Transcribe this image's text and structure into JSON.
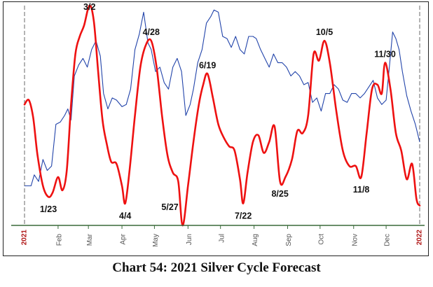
{
  "caption": "Chart 54: 2021 Silver Cycle Forecast",
  "colors": {
    "cycle": "#ee1111",
    "price": "#2244aa",
    "axis": "#3a6a3a",
    "year_label": "#b01818",
    "month_label": "#555555",
    "annotation": "#111111"
  },
  "chart_data": {
    "type": "line",
    "title": "Chart 54: 2021 Silver Cycle Forecast",
    "xlabel": "",
    "ylabel": "",
    "x_range": [
      "2021-01-01",
      "2022-01-01"
    ],
    "y_range": [
      0,
      100
    ],
    "y_scale_note": "unitless (no y-axis ticks shown)",
    "grid": false,
    "legend": "none",
    "year_labels": [
      {
        "date": "2021-01-01",
        "label": "2021"
      },
      {
        "date": "2022-01-01",
        "label": "2022"
      }
    ],
    "month_ticks": [
      {
        "date": "2021-02-01",
        "label": "Feb"
      },
      {
        "date": "2021-03-01",
        "label": "Mar"
      },
      {
        "date": "2021-04-01",
        "label": "Apr"
      },
      {
        "date": "2021-05-01",
        "label": "May"
      },
      {
        "date": "2021-06-01",
        "label": "Jun"
      },
      {
        "date": "2021-07-01",
        "label": "Jul"
      },
      {
        "date": "2021-08-01",
        "label": "Aug"
      },
      {
        "date": "2021-09-01",
        "label": "Sep"
      },
      {
        "date": "2021-10-01",
        "label": "Oct"
      },
      {
        "date": "2021-11-01",
        "label": "Nov"
      },
      {
        "date": "2021-12-01",
        "label": "Dec"
      }
    ],
    "annotations": [
      {
        "text": "3/2",
        "date": "2021-03-02",
        "y": 100,
        "pos": "above"
      },
      {
        "text": "4/28",
        "date": "2021-04-28",
        "y": 84,
        "pos": "above"
      },
      {
        "text": "6/19",
        "date": "2021-06-19",
        "y": 69,
        "pos": "above"
      },
      {
        "text": "10/5",
        "date": "2021-10-05",
        "y": 84,
        "pos": "above"
      },
      {
        "text": "11/30",
        "date": "2021-11-30",
        "y": 74,
        "pos": "above"
      },
      {
        "text": "1/23",
        "date": "2021-01-23",
        "y": 13,
        "pos": "below"
      },
      {
        "text": "4/4",
        "date": "2021-04-04",
        "y": 10,
        "pos": "below"
      },
      {
        "text": "5/27",
        "date": "2021-05-27",
        "y": 0,
        "pos": "left-below"
      },
      {
        "text": "7/22",
        "date": "2021-07-22",
        "y": 10,
        "pos": "below"
      },
      {
        "text": "8/25",
        "date": "2021-08-25",
        "y": 20,
        "pos": "below"
      },
      {
        "text": "11/8",
        "date": "2021-11-08",
        "y": 22,
        "pos": "below"
      }
    ],
    "series": [
      {
        "role": "cycle",
        "points": [
          [
            "2021-01-01",
            55
          ],
          [
            "2021-01-05",
            57
          ],
          [
            "2021-01-09",
            49
          ],
          [
            "2021-01-13",
            32
          ],
          [
            "2021-01-18",
            18
          ],
          [
            "2021-01-23",
            13
          ],
          [
            "2021-01-27",
            15
          ],
          [
            "2021-02-01",
            22
          ],
          [
            "2021-02-05",
            16
          ],
          [
            "2021-02-09",
            25
          ],
          [
            "2021-02-13",
            55
          ],
          [
            "2021-02-17",
            78
          ],
          [
            "2021-02-21",
            86
          ],
          [
            "2021-02-25",
            91
          ],
          [
            "2021-03-02",
            100
          ],
          [
            "2021-03-06",
            93
          ],
          [
            "2021-03-10",
            70
          ],
          [
            "2021-03-14",
            48
          ],
          [
            "2021-03-18",
            37
          ],
          [
            "2021-03-22",
            29
          ],
          [
            "2021-03-27",
            28
          ],
          [
            "2021-04-01",
            18
          ],
          [
            "2021-04-04",
            10
          ],
          [
            "2021-04-08",
            25
          ],
          [
            "2021-04-13",
            50
          ],
          [
            "2021-04-18",
            72
          ],
          [
            "2021-04-23",
            82
          ],
          [
            "2021-04-28",
            84
          ],
          [
            "2021-05-03",
            72
          ],
          [
            "2021-05-08",
            50
          ],
          [
            "2021-05-13",
            32
          ],
          [
            "2021-05-18",
            24
          ],
          [
            "2021-05-23",
            20
          ],
          [
            "2021-05-27",
            0
          ],
          [
            "2021-06-01",
            18
          ],
          [
            "2021-06-06",
            38
          ],
          [
            "2021-06-11",
            55
          ],
          [
            "2021-06-15",
            64
          ],
          [
            "2021-06-19",
            69
          ],
          [
            "2021-06-24",
            58
          ],
          [
            "2021-06-29",
            46
          ],
          [
            "2021-07-04",
            40
          ],
          [
            "2021-07-09",
            36
          ],
          [
            "2021-07-14",
            34
          ],
          [
            "2021-07-19",
            21
          ],
          [
            "2021-07-22",
            10
          ],
          [
            "2021-07-26",
            24
          ],
          [
            "2021-07-31",
            38
          ],
          [
            "2021-08-05",
            41
          ],
          [
            "2021-08-10",
            33
          ],
          [
            "2021-08-15",
            38
          ],
          [
            "2021-08-20",
            45
          ],
          [
            "2021-08-25",
            20
          ],
          [
            "2021-08-30",
            22
          ],
          [
            "2021-09-05",
            30
          ],
          [
            "2021-09-10",
            43
          ],
          [
            "2021-09-15",
            42
          ],
          [
            "2021-09-20",
            50
          ],
          [
            "2021-09-25",
            78
          ],
          [
            "2021-09-30",
            75
          ],
          [
            "2021-10-05",
            84
          ],
          [
            "2021-10-10",
            74
          ],
          [
            "2021-10-16",
            52
          ],
          [
            "2021-10-22",
            34
          ],
          [
            "2021-10-28",
            27
          ],
          [
            "2021-11-03",
            27
          ],
          [
            "2021-11-08",
            22
          ],
          [
            "2021-11-13",
            42
          ],
          [
            "2021-11-18",
            62
          ],
          [
            "2021-11-23",
            64
          ],
          [
            "2021-11-27",
            60
          ],
          [
            "2021-11-30",
            74
          ],
          [
            "2021-12-05",
            62
          ],
          [
            "2021-12-10",
            42
          ],
          [
            "2021-12-15",
            34
          ],
          [
            "2021-12-20",
            21
          ],
          [
            "2021-12-25",
            28
          ],
          [
            "2021-12-29",
            12
          ],
          [
            "2022-01-01",
            9
          ]
        ]
      },
      {
        "role": "price",
        "points": [
          [
            "2021-01-01",
            18
          ],
          [
            "2021-01-04",
            18
          ],
          [
            "2021-01-07",
            18
          ],
          [
            "2021-01-10",
            23
          ],
          [
            "2021-01-14",
            20
          ],
          [
            "2021-01-18",
            30
          ],
          [
            "2021-01-22",
            25
          ],
          [
            "2021-01-26",
            27
          ],
          [
            "2021-01-30",
            46
          ],
          [
            "2021-02-03",
            47
          ],
          [
            "2021-02-07",
            50
          ],
          [
            "2021-02-10",
            53
          ],
          [
            "2021-02-13",
            48
          ],
          [
            "2021-02-16",
            68
          ],
          [
            "2021-02-20",
            73
          ],
          [
            "2021-02-24",
            76
          ],
          [
            "2021-02-28",
            72
          ],
          [
            "2021-03-04",
            80
          ],
          [
            "2021-03-08",
            84
          ],
          [
            "2021-03-12",
            77
          ],
          [
            "2021-03-15",
            60
          ],
          [
            "2021-03-19",
            53
          ],
          [
            "2021-03-23",
            58
          ],
          [
            "2021-03-27",
            57
          ],
          [
            "2021-04-01",
            54
          ],
          [
            "2021-04-05",
            55
          ],
          [
            "2021-04-09",
            62
          ],
          [
            "2021-04-13",
            80
          ],
          [
            "2021-04-17",
            87
          ],
          [
            "2021-04-21",
            97
          ],
          [
            "2021-04-25",
            83
          ],
          [
            "2021-04-28",
            80
          ],
          [
            "2021-05-02",
            70
          ],
          [
            "2021-05-06",
            72
          ],
          [
            "2021-05-10",
            65
          ],
          [
            "2021-05-14",
            62
          ],
          [
            "2021-05-18",
            72
          ],
          [
            "2021-05-22",
            76
          ],
          [
            "2021-05-26",
            70
          ],
          [
            "2021-05-30",
            50
          ],
          [
            "2021-06-03",
            55
          ],
          [
            "2021-06-06",
            62
          ],
          [
            "2021-06-10",
            74
          ],
          [
            "2021-06-14",
            80
          ],
          [
            "2021-06-18",
            92
          ],
          [
            "2021-06-22",
            95
          ],
          [
            "2021-06-25",
            98
          ],
          [
            "2021-06-29",
            97
          ],
          [
            "2021-07-03",
            86
          ],
          [
            "2021-07-07",
            85
          ],
          [
            "2021-07-11",
            81
          ],
          [
            "2021-07-15",
            86
          ],
          [
            "2021-07-19",
            80
          ],
          [
            "2021-07-23",
            78
          ],
          [
            "2021-07-27",
            86
          ],
          [
            "2021-07-31",
            86
          ],
          [
            "2021-08-03",
            85
          ],
          [
            "2021-08-07",
            80
          ],
          [
            "2021-08-11",
            76
          ],
          [
            "2021-08-15",
            72
          ],
          [
            "2021-08-19",
            78
          ],
          [
            "2021-08-23",
            74
          ],
          [
            "2021-08-27",
            74
          ],
          [
            "2021-08-31",
            72
          ],
          [
            "2021-09-04",
            68
          ],
          [
            "2021-09-08",
            70
          ],
          [
            "2021-09-12",
            68
          ],
          [
            "2021-09-16",
            64
          ],
          [
            "2021-09-20",
            65
          ],
          [
            "2021-09-24",
            56
          ],
          [
            "2021-09-28",
            58
          ],
          [
            "2021-10-02",
            52
          ],
          [
            "2021-10-06",
            60
          ],
          [
            "2021-10-10",
            60
          ],
          [
            "2021-10-14",
            64
          ],
          [
            "2021-10-18",
            62
          ],
          [
            "2021-10-22",
            57
          ],
          [
            "2021-10-26",
            56
          ],
          [
            "2021-10-30",
            60
          ],
          [
            "2021-11-03",
            60
          ],
          [
            "2021-11-07",
            58
          ],
          [
            "2021-11-11",
            60
          ],
          [
            "2021-11-15",
            63
          ],
          [
            "2021-11-19",
            66
          ],
          [
            "2021-11-23",
            58
          ],
          [
            "2021-11-27",
            55
          ],
          [
            "2021-12-01",
            57
          ],
          [
            "2021-12-04",
            72
          ],
          [
            "2021-12-07",
            88
          ],
          [
            "2021-12-10",
            85
          ],
          [
            "2021-12-13",
            80
          ],
          [
            "2021-12-16",
            70
          ],
          [
            "2021-12-20",
            59
          ],
          [
            "2021-12-24",
            52
          ],
          [
            "2021-12-28",
            46
          ],
          [
            "2022-01-01",
            38
          ]
        ]
      }
    ]
  }
}
